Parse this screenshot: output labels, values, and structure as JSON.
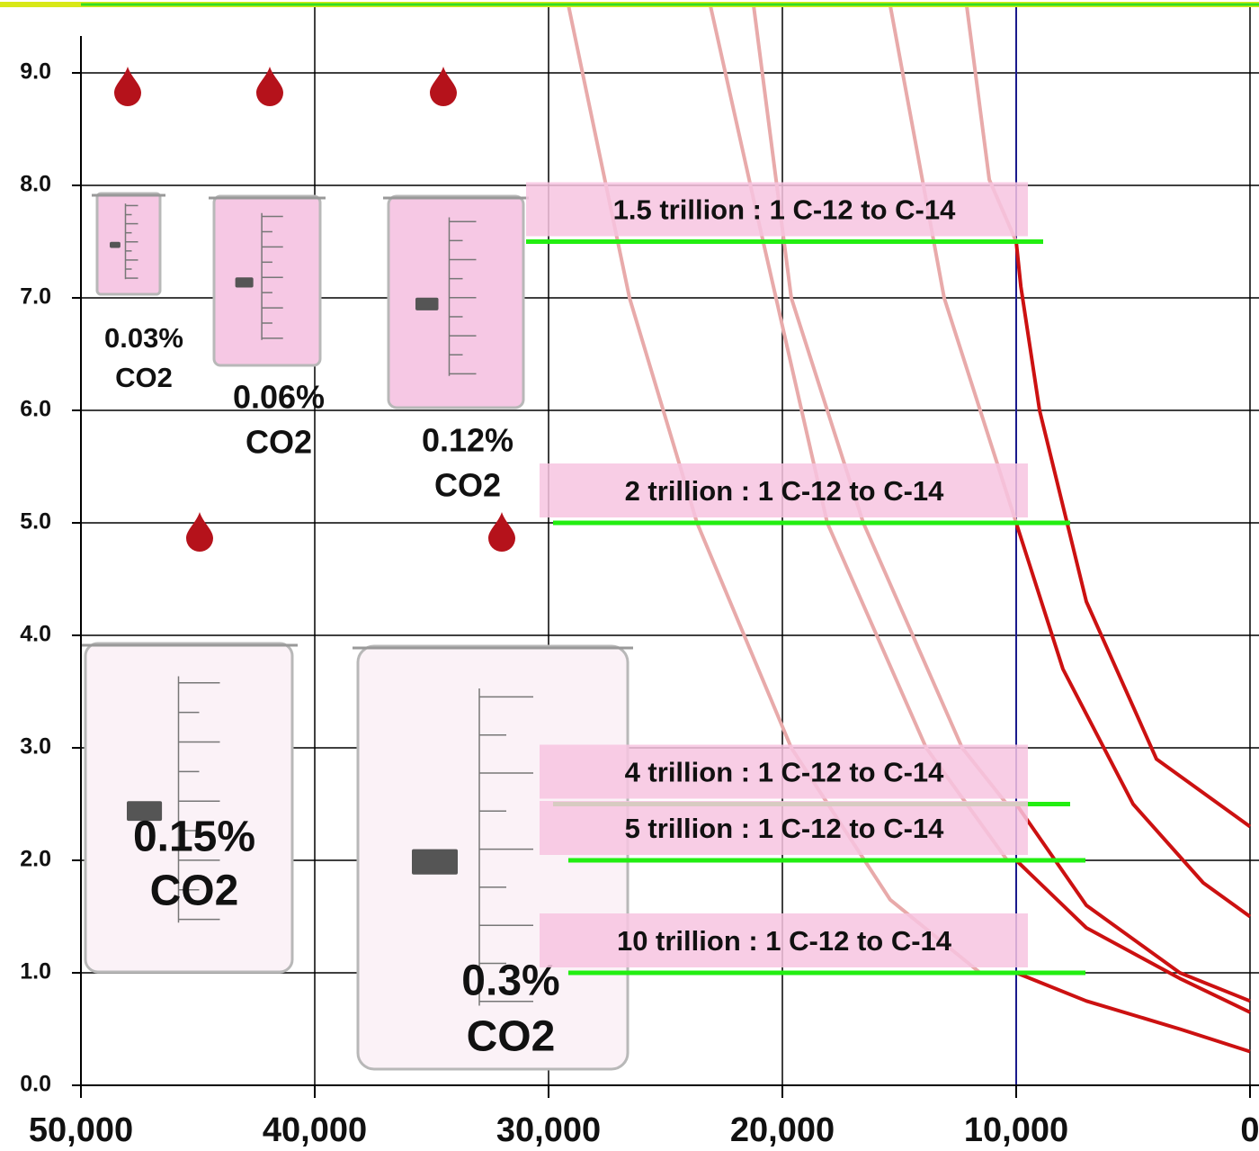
{
  "chart_data": {
    "type": "line",
    "xlim": [
      50000,
      0
    ],
    "ylim": [
      0,
      9.6
    ],
    "xticks": [
      {
        "value": 50000,
        "label": "50,000"
      },
      {
        "value": 40000,
        "label": "40,000"
      },
      {
        "value": 30000,
        "label": "30,000"
      },
      {
        "value": 20000,
        "label": "20,000"
      },
      {
        "value": 10000,
        "label": "10,000"
      },
      {
        "value": 0,
        "label": "0"
      }
    ],
    "yticks": [
      {
        "value": 0,
        "label": "0.0"
      },
      {
        "value": 1,
        "label": "1.0"
      },
      {
        "value": 2,
        "label": "2.0"
      },
      {
        "value": 3,
        "label": "3.0"
      },
      {
        "value": 4,
        "label": "4.0"
      },
      {
        "value": 5,
        "label": "5.0"
      },
      {
        "value": 6,
        "label": "6.0"
      },
      {
        "value": 7,
        "label": "7.0"
      },
      {
        "value": 8,
        "label": "8.0"
      },
      {
        "value": 9,
        "label": "9.0"
      }
    ],
    "grid": true,
    "vline": {
      "x": 10000,
      "color": "#1a1a8c"
    },
    "series": [
      {
        "color": "#e8aaaa",
        "x": [
          29150,
          26540,
          23650,
          19620,
          15390,
          11540
        ],
        "values": [
          9.6,
          7.0,
          5.0,
          3.0,
          1.65,
          1.0
        ]
      },
      {
        "color": "#e8aaaa",
        "x": [
          23080,
          21150,
          18080,
          13850,
          10380,
          10000
        ],
        "values": [
          9.6,
          7.8,
          5.0,
          3.0,
          2.0,
          2.0
        ]
      },
      {
        "color": "#e8aaaa",
        "x": [
          21230,
          19620,
          16540,
          12310,
          10400,
          10000
        ],
        "values": [
          9.6,
          7.0,
          5.0,
          3.0,
          2.5,
          2.5
        ]
      },
      {
        "color": "#e8aaaa",
        "x": [
          15390,
          13080,
          10770,
          10000
        ],
        "values": [
          9.6,
          7.0,
          5.5,
          5.0
        ]
      },
      {
        "color": "#e8aaaa",
        "x": [
          12120,
          11150,
          10000
        ],
        "values": [
          9.6,
          8.05,
          7.5
        ]
      },
      {
        "color": "#cc1111",
        "x": [
          10000,
          9800,
          9000,
          7000,
          4000,
          0
        ],
        "values": [
          7.5,
          7.1,
          6.0,
          4.3,
          2.9,
          2.3
        ]
      },
      {
        "color": "#cc1111",
        "x": [
          10000,
          8000,
          5000,
          2000,
          0
        ],
        "values": [
          5.0,
          3.7,
          2.5,
          1.8,
          1.5
        ]
      },
      {
        "color": "#cc1111",
        "x": [
          10000,
          7000,
          3000,
          0
        ],
        "values": [
          2.5,
          1.6,
          1.0,
          0.75
        ]
      },
      {
        "color": "#cc1111",
        "x": [
          10000,
          7000,
          3000,
          0
        ],
        "values": [
          2.0,
          1.4,
          0.95,
          0.65
        ]
      },
      {
        "color": "#cc1111",
        "x": [
          10000,
          7000,
          3000,
          0
        ],
        "values": [
          1.0,
          0.75,
          0.5,
          0.3
        ]
      }
    ],
    "annotations": [
      {
        "text": "1.5 trillion : 1 C-12 to C-14",
        "y": 7.5
      },
      {
        "text": "2 trillion : 1 C-12 to C-14",
        "y": 5.0
      },
      {
        "text": "4 trillion : 1 C-12 to C-14",
        "y": 2.5
      },
      {
        "text": "5 trillion : 1 C-12 to C-14",
        "y": 2.0
      },
      {
        "text": "10 trillion : 1 C-12 to C-14",
        "y": 1.0
      }
    ],
    "beakers": [
      {
        "percent": "0.03%",
        "gas": "CO2"
      },
      {
        "percent": "0.06%",
        "gas": "CO2"
      },
      {
        "percent": "0.12%",
        "gas": "CO2"
      },
      {
        "percent": "0.15%",
        "gas": "CO2"
      },
      {
        "percent": "0.3%",
        "gas": "CO2"
      }
    ]
  }
}
